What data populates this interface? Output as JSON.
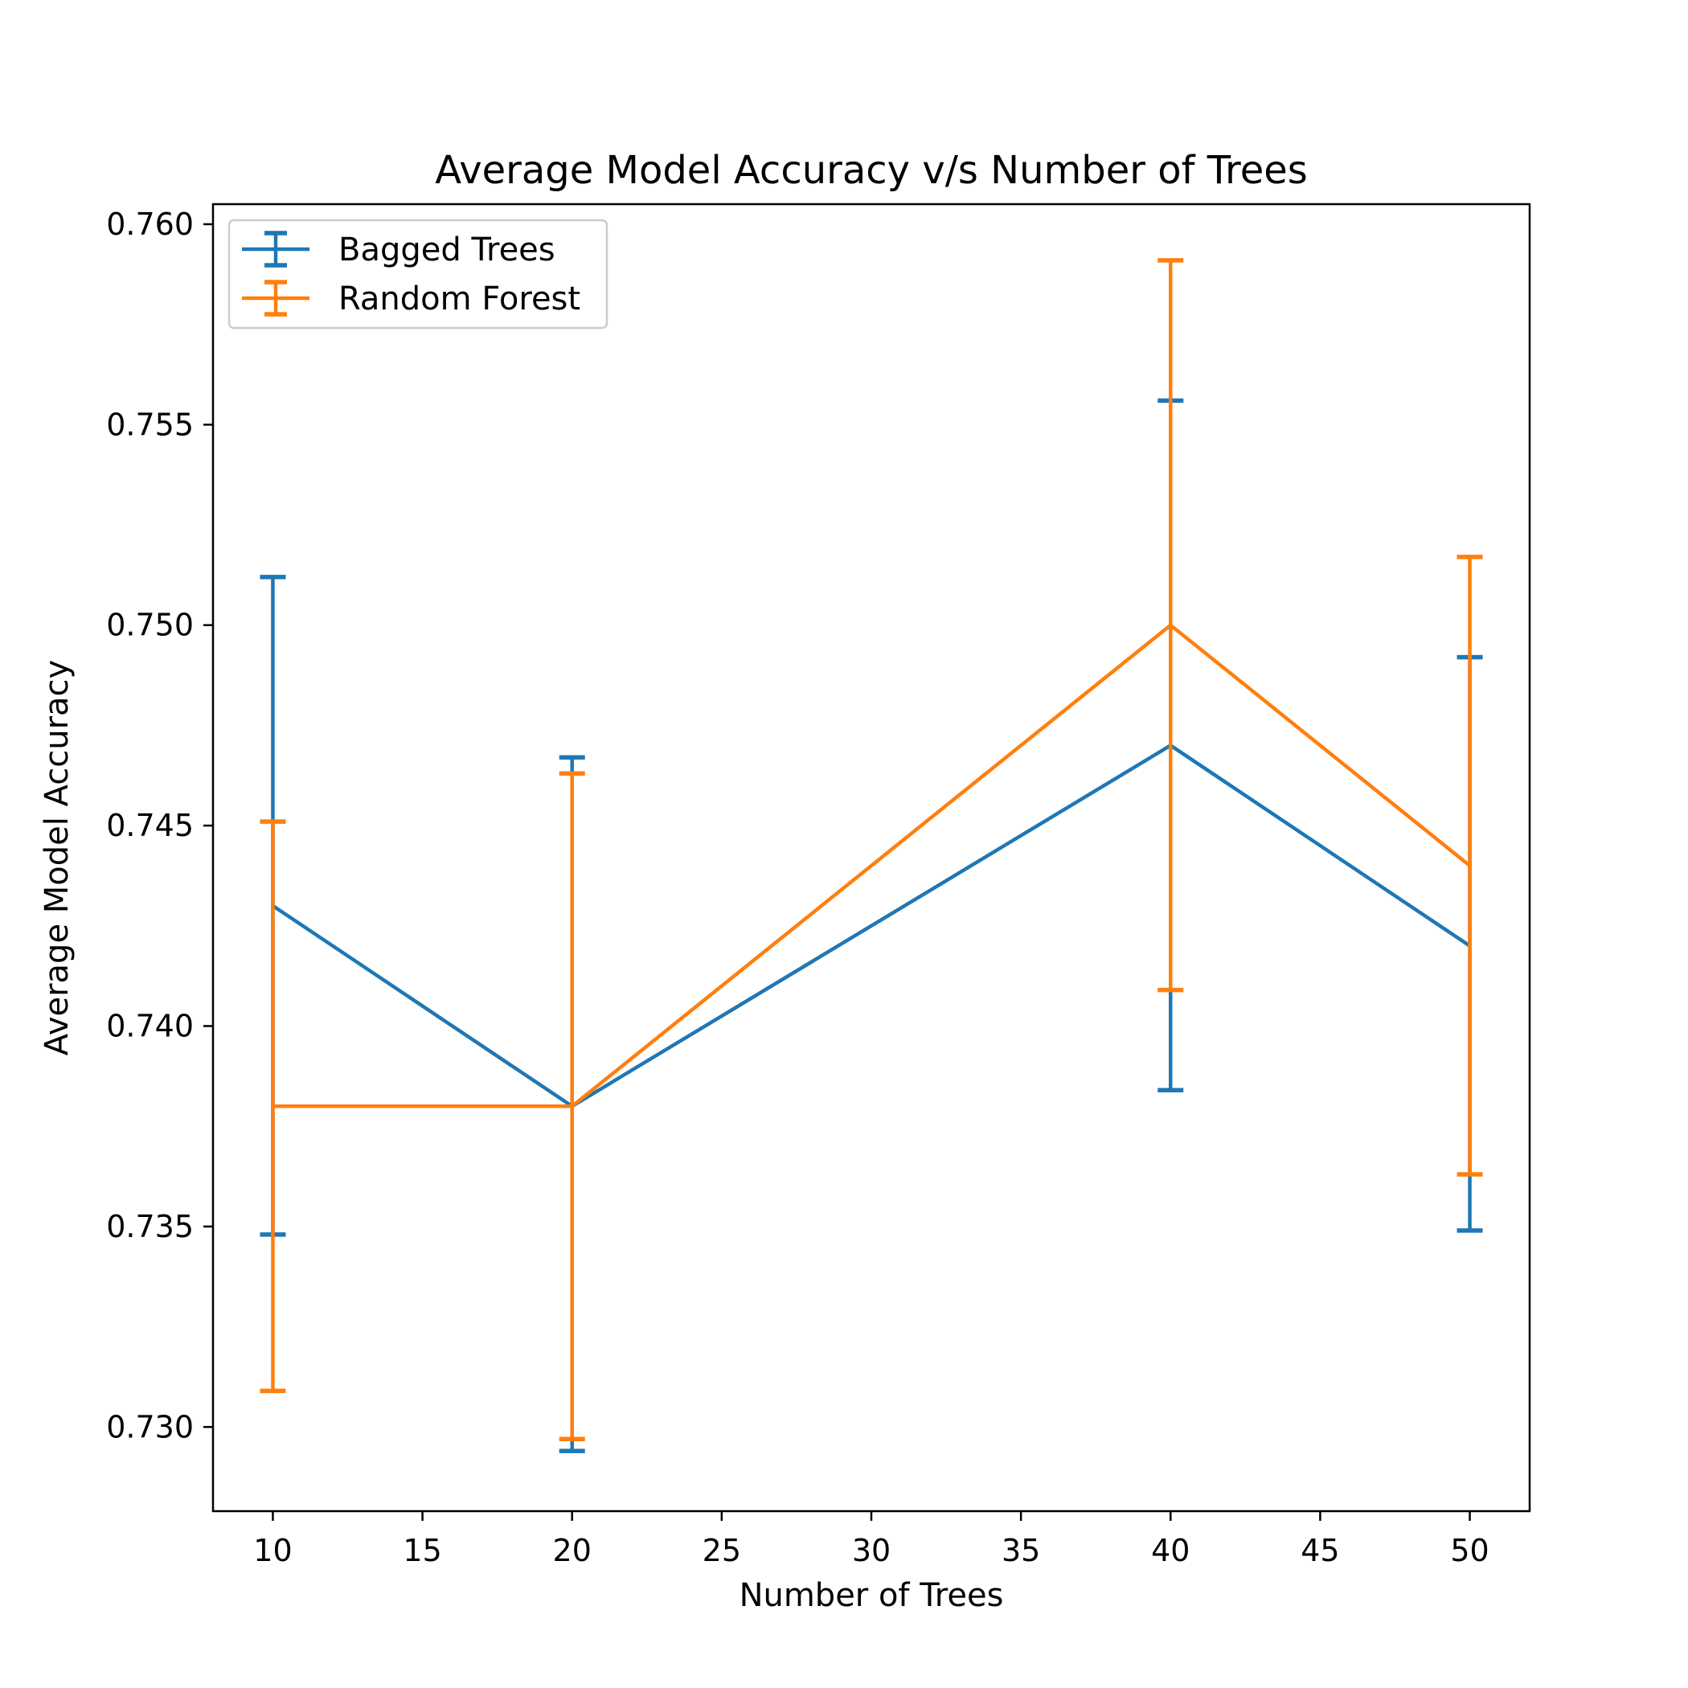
{
  "chart_data": {
    "type": "line",
    "title": "Average Model Accuracy v/s Number of Trees",
    "xlabel": "Number of Trees",
    "ylabel": "Average Model Accuracy",
    "xlim": [
      8,
      52
    ],
    "ylim": [
      0.7279,
      0.7605
    ],
    "x_ticks": [
      10,
      15,
      20,
      25,
      30,
      35,
      40,
      45,
      50
    ],
    "x_tick_labels": [
      "10",
      "15",
      "20",
      "25",
      "30",
      "35",
      "40",
      "45",
      "50"
    ],
    "y_ticks": [
      0.73,
      0.735,
      0.74,
      0.745,
      0.75,
      0.755,
      0.76
    ],
    "y_tick_labels": [
      "0.730",
      "0.735",
      "0.740",
      "0.745",
      "0.750",
      "0.755",
      "0.760"
    ],
    "grid": false,
    "legend_position": "top-left",
    "series": [
      {
        "name": "Bagged Trees",
        "color": "#1f77b4",
        "x": [
          10,
          20,
          40,
          50
        ],
        "y": [
          0.743,
          0.738,
          0.747,
          0.742
        ],
        "err_low": [
          0.7348,
          0.7294,
          0.7384,
          0.7349
        ],
        "err_high": [
          0.7512,
          0.7467,
          0.7556,
          0.7492
        ]
      },
      {
        "name": "Random Forest",
        "color": "#ff7f0e",
        "x": [
          10,
          20,
          40,
          50
        ],
        "y": [
          0.738,
          0.738,
          0.75,
          0.744
        ],
        "err_low": [
          0.7309,
          0.7297,
          0.7409,
          0.7363
        ],
        "err_high": [
          0.7451,
          0.7463,
          0.7591,
          0.7517
        ]
      }
    ]
  }
}
